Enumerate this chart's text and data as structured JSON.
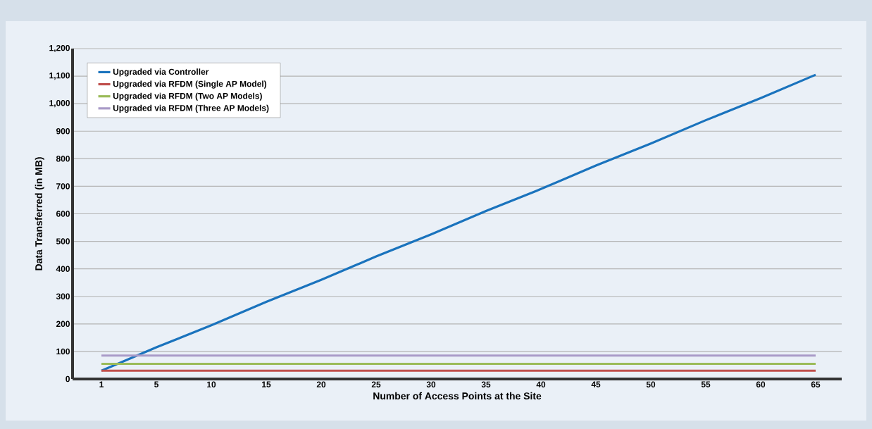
{
  "chart_data": {
    "type": "line",
    "xlabel": "Number of Access Points at the Site",
    "ylabel": "Data Transferred (in MB)",
    "categories": [
      "1",
      "5",
      "10",
      "15",
      "20",
      "25",
      "30",
      "35",
      "40",
      "45",
      "50",
      "55",
      "60",
      "65"
    ],
    "series": [
      {
        "name": "Upgraded via Controller",
        "color": "#1a73bd",
        "values": [
          30,
          115,
          195,
          280,
          360,
          445,
          525,
          610,
          690,
          775,
          855,
          940,
          1020,
          1105
        ]
      },
      {
        "name": "Upgraded via RFDM (Single AP Model)",
        "color": "#c0504d",
        "values": [
          30,
          30,
          30,
          30,
          30,
          30,
          30,
          30,
          30,
          30,
          30,
          30,
          30,
          30
        ]
      },
      {
        "name": "Upgraded via RFDM (Two AP Models)",
        "color": "#9bbb59",
        "values": [
          55,
          55,
          55,
          55,
          55,
          55,
          55,
          55,
          55,
          55,
          55,
          55,
          55,
          55
        ]
      },
      {
        "name": "Upgraded via RFDM (Three AP Models)",
        "color": "#a99bc8",
        "values": [
          85,
          85,
          85,
          85,
          85,
          85,
          85,
          85,
          85,
          85,
          85,
          85,
          85,
          85
        ]
      }
    ],
    "ylim": [
      0,
      1200
    ],
    "yticks": [
      0,
      100,
      200,
      300,
      400,
      500,
      600,
      700,
      800,
      900,
      {
        "value": 1000,
        "label": "1,000"
      },
      {
        "value": 1100,
        "label": "1,100"
      },
      {
        "value": 1200,
        "label": "1,200"
      }
    ],
    "grid": "y",
    "legend": "top left",
    "marker": "none",
    "line_style": "solid"
  }
}
